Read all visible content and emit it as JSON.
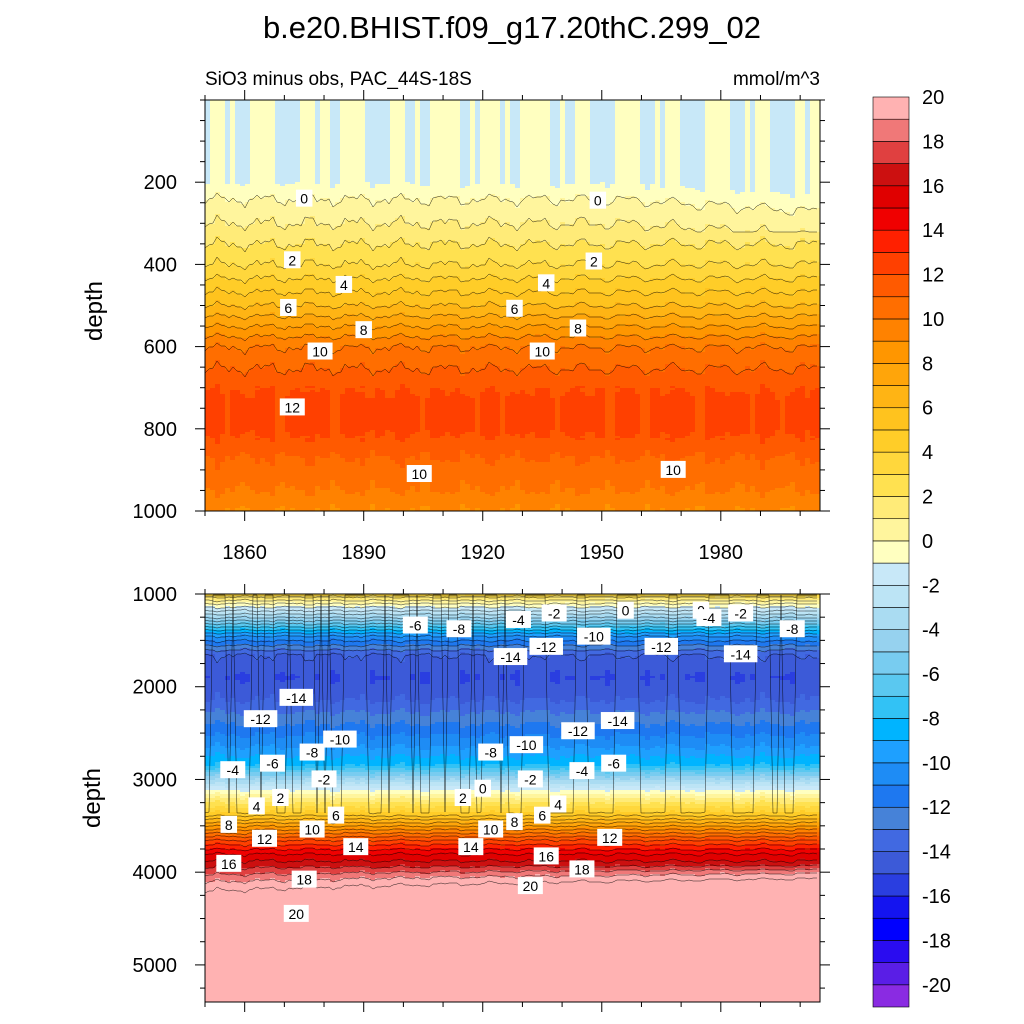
{
  "title": "b.e20.BHIST.f09_g17.20thC.299_02",
  "colorbar": {
    "levels": [
      -20,
      -19,
      -18,
      -17,
      -16,
      -15,
      -14,
      -13,
      -12,
      -11,
      -10,
      -9,
      -8,
      -7,
      -6,
      -5,
      -4,
      -3,
      -2,
      -1,
      0,
      1,
      2,
      3,
      4,
      5,
      6,
      7,
      8,
      9,
      10,
      11,
      12,
      13,
      14,
      15,
      16,
      17,
      18,
      19,
      20
    ],
    "tick_labels": [
      "-20",
      "-18",
      "-16",
      "-14",
      "-12",
      "-10",
      "-8",
      "-6",
      "-4",
      "-2",
      "0",
      "2",
      "4",
      "6",
      "8",
      "10",
      "12",
      "14",
      "16",
      "18",
      "20"
    ],
    "colors": [
      "#8a2be2",
      "#5a1ee6",
      "#2a0cf0",
      "#0000ff",
      "#1414f0",
      "#2a3ee0",
      "#3c5ad8",
      "#4169e1",
      "#4682d8",
      "#1e78f0",
      "#1e8cf5",
      "#1ea0ff",
      "#00b4ff",
      "#32c2f5",
      "#5ac8f0",
      "#78ccf0",
      "#96d2ef",
      "#aadcf2",
      "#bce4f5",
      "#c8e8f8",
      "#ffffc0",
      "#fff59d",
      "#ffeb78",
      "#ffe150",
      "#ffd73c",
      "#ffcd28",
      "#ffc31e",
      "#ffb414",
      "#ffa50a",
      "#ff9600",
      "#ff8200",
      "#ff6e00",
      "#ff5a00",
      "#ff4000",
      "#ff2000",
      "#f00000",
      "#e00000",
      "#cc1010",
      "#e04040",
      "#f07878",
      "#ffb2b2"
    ]
  },
  "chart_data": [
    {
      "type": "contour",
      "subtitle_left": "SiO3 minus obs, PAC_44S-18S",
      "subtitle_right": "mmol/m^3",
      "ylabel": "depth",
      "xlabel": "",
      "xlim": [
        1850,
        2005
      ],
      "ylim": [
        1000,
        0
      ],
      "x_ticks": [
        1860,
        1890,
        1920,
        1950,
        1980
      ],
      "y_ticks": [
        200,
        400,
        600,
        800,
        1000
      ],
      "contour_interval": 1,
      "profile": {
        "depth": [
          0,
          200,
          240,
          300,
          400,
          500,
          600,
          680,
          730,
          800,
          870,
          950,
          1000
        ],
        "value": [
          -1,
          -1,
          0,
          1,
          3,
          6,
          10,
          11.5,
          12.3,
          12.3,
          11,
          10,
          9
        ]
      },
      "contour_labels": [
        {
          "text": "0",
          "year": 1875,
          "depth": 240
        },
        {
          "text": "0",
          "year": 1949,
          "depth": 245
        },
        {
          "text": "2",
          "year": 1872,
          "depth": 390
        },
        {
          "text": "2",
          "year": 1948,
          "depth": 393
        },
        {
          "text": "4",
          "year": 1885,
          "depth": 450
        },
        {
          "text": "4",
          "year": 1936,
          "depth": 446
        },
        {
          "text": "6",
          "year": 1871,
          "depth": 506
        },
        {
          "text": "6",
          "year": 1928,
          "depth": 508
        },
        {
          "text": "8",
          "year": 1890,
          "depth": 560
        },
        {
          "text": "8",
          "year": 1944,
          "depth": 556
        },
        {
          "text": "10",
          "year": 1879,
          "depth": 612
        },
        {
          "text": "10",
          "year": 1935,
          "depth": 612
        },
        {
          "text": "12",
          "year": 1872,
          "depth": 748
        },
        {
          "text": "10",
          "year": 1904,
          "depth": 910
        },
        {
          "text": "10",
          "year": 1968,
          "depth": 900
        }
      ]
    },
    {
      "type": "contour",
      "ylabel": "depth",
      "xlabel": "",
      "xlim": [
        1850,
        2005
      ],
      "ylim": [
        5400,
        1000
      ],
      "x_ticks": [
        1860,
        1890,
        1920,
        1950,
        1980
      ],
      "y_ticks": [
        1000,
        2000,
        3000,
        4000,
        5000
      ],
      "contour_interval": 1,
      "profile": {
        "depth": [
          1000,
          1030,
          1100,
          1250,
          1450,
          1650,
          1900,
          2150,
          2400,
          2650,
          2850,
          3000,
          3120,
          3200,
          3350,
          3500,
          3650,
          3800,
          3950,
          4100,
          4300,
          5400
        ],
        "value": [
          4,
          2,
          0,
          -4,
          -10,
          -14,
          -15,
          -14,
          -12,
          -10,
          -8,
          -4,
          -1,
          1,
          4,
          8,
          12,
          15,
          17,
          19,
          21,
          21
        ]
      },
      "contour_labels": [
        {
          "text": "-6",
          "year": 1903,
          "depth": 1340
        },
        {
          "text": "-8",
          "year": 1914,
          "depth": 1380
        },
        {
          "text": "-4",
          "year": 1929,
          "depth": 1280
        },
        {
          "text": "-2",
          "year": 1938,
          "depth": 1210
        },
        {
          "text": "0",
          "year": 1956,
          "depth": 1180
        },
        {
          "text": "0",
          "year": 1975,
          "depth": 1180
        },
        {
          "text": "-4",
          "year": 1977,
          "depth": 1260
        },
        {
          "text": "-2",
          "year": 1985,
          "depth": 1210
        },
        {
          "text": "-8",
          "year": 1998,
          "depth": 1380
        },
        {
          "text": "-12",
          "year": 1936,
          "depth": 1570
        },
        {
          "text": "-10",
          "year": 1948,
          "depth": 1460
        },
        {
          "text": "-12",
          "year": 1965,
          "depth": 1570
        },
        {
          "text": "-14",
          "year": 1927,
          "depth": 1680
        },
        {
          "text": "-14",
          "year": 1985,
          "depth": 1650
        },
        {
          "text": "-14",
          "year": 1873,
          "depth": 2120
        },
        {
          "text": "-12",
          "year": 1864,
          "depth": 2350
        },
        {
          "text": "-10",
          "year": 1884,
          "depth": 2570
        },
        {
          "text": "-8",
          "year": 1877,
          "depth": 2710
        },
        {
          "text": "-6",
          "year": 1867,
          "depth": 2830
        },
        {
          "text": "-4",
          "year": 1857,
          "depth": 2900
        },
        {
          "text": "-2",
          "year": 1880,
          "depth": 3000
        },
        {
          "text": "-14",
          "year": 1954,
          "depth": 2370
        },
        {
          "text": "-12",
          "year": 1944,
          "depth": 2480
        },
        {
          "text": "-10",
          "year": 1931,
          "depth": 2630
        },
        {
          "text": "-8",
          "year": 1922,
          "depth": 2710
        },
        {
          "text": "-6",
          "year": 1953,
          "depth": 2830
        },
        {
          "text": "-4",
          "year": 1945,
          "depth": 2910
        },
        {
          "text": "-2",
          "year": 1932,
          "depth": 3000
        },
        {
          "text": "0",
          "year": 1920,
          "depth": 3100
        },
        {
          "text": "2",
          "year": 1915,
          "depth": 3200
        },
        {
          "text": "2",
          "year": 1869,
          "depth": 3200
        },
        {
          "text": "4",
          "year": 1863,
          "depth": 3290
        },
        {
          "text": "4",
          "year": 1939,
          "depth": 3270
        },
        {
          "text": "6",
          "year": 1935,
          "depth": 3390
        },
        {
          "text": "6",
          "year": 1883,
          "depth": 3390
        },
        {
          "text": "8",
          "year": 1856,
          "depth": 3490
        },
        {
          "text": "8",
          "year": 1928,
          "depth": 3460
        },
        {
          "text": "10",
          "year": 1877,
          "depth": 3540
        },
        {
          "text": "10",
          "year": 1922,
          "depth": 3540
        },
        {
          "text": "12",
          "year": 1865,
          "depth": 3640
        },
        {
          "text": "12",
          "year": 1952,
          "depth": 3630
        },
        {
          "text": "14",
          "year": 1888,
          "depth": 3730
        },
        {
          "text": "14",
          "year": 1917,
          "depth": 3730
        },
        {
          "text": "16",
          "year": 1856,
          "depth": 3910
        },
        {
          "text": "16",
          "year": 1936,
          "depth": 3830
        },
        {
          "text": "18",
          "year": 1875,
          "depth": 4080
        },
        {
          "text": "18",
          "year": 1945,
          "depth": 3970
        },
        {
          "text": "20",
          "year": 1873,
          "depth": 4450
        },
        {
          "text": "20",
          "year": 1932,
          "depth": 4150
        }
      ]
    }
  ]
}
